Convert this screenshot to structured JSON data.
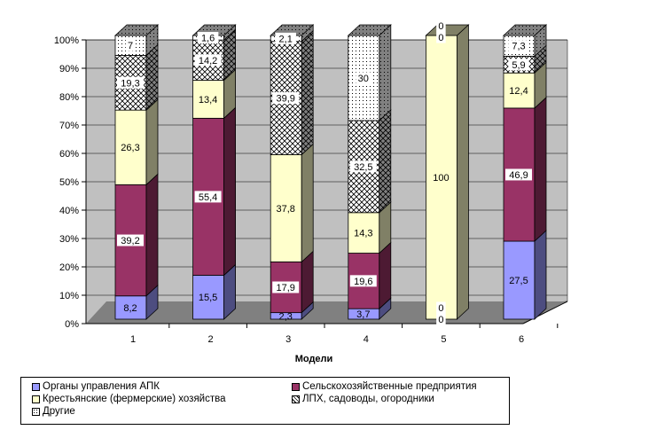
{
  "chart_data": {
    "type": "bar",
    "stacked": true,
    "percent": true,
    "title": "",
    "xlabel": "Модели",
    "ylabel": "",
    "ylim": [
      0,
      100
    ],
    "yticks": [
      "0%",
      "10%",
      "20%",
      "30%",
      "40%",
      "50%",
      "60%",
      "70%",
      "80%",
      "90%",
      "100%"
    ],
    "categories": [
      "1",
      "2",
      "3",
      "4",
      "5",
      "6"
    ],
    "grid": true,
    "legend_position": "bottom",
    "series": [
      {
        "name": "Органы управления АПК",
        "color": "#9999ff",
        "side": "#4d4d80",
        "pattern": "solid",
        "values": [
          8.2,
          15.5,
          2.3,
          3.7,
          0,
          27.5
        ],
        "labels": [
          "8,2",
          "15,5",
          "2,3",
          "3,7",
          "0",
          "27,5"
        ]
      },
      {
        "name": "Сельскохозяйственные предприятия",
        "color": "#993366",
        "side": "#4d1a33",
        "pattern": "solid",
        "values": [
          39.2,
          55.4,
          17.9,
          19.6,
          0,
          46.9
        ],
        "labels": [
          "39,2",
          "55,4",
          "17,9",
          "19,6",
          "0",
          "46,9"
        ]
      },
      {
        "name": "Крестьянские (фермерские) хозяйства",
        "color": "#ffffcc",
        "side": "#808066",
        "pattern": "solid",
        "values": [
          26.3,
          13.4,
          37.8,
          14.3,
          100,
          12.4
        ],
        "labels": [
          "26,3",
          "13,4",
          "37,8",
          "14,3",
          "100",
          "12,4"
        ]
      },
      {
        "name": "ЛПХ, садоводы, огородники",
        "color": "#ffffff",
        "side": "#808080",
        "pattern": "crosshatch",
        "values": [
          19.3,
          14.2,
          39.9,
          32.5,
          0,
          5.9
        ],
        "labels": [
          "19,3",
          "14,2",
          "39,9",
          "32,5",
          "0",
          "5,9"
        ]
      },
      {
        "name": "Другие",
        "color": "#ffffff",
        "side": "#808080",
        "pattern": "dots",
        "values": [
          7,
          1.6,
          2.1,
          30,
          0,
          7.3
        ],
        "labels": [
          "7",
          "1,6",
          "2,1",
          "30",
          "0",
          "7,3"
        ]
      }
    ]
  }
}
